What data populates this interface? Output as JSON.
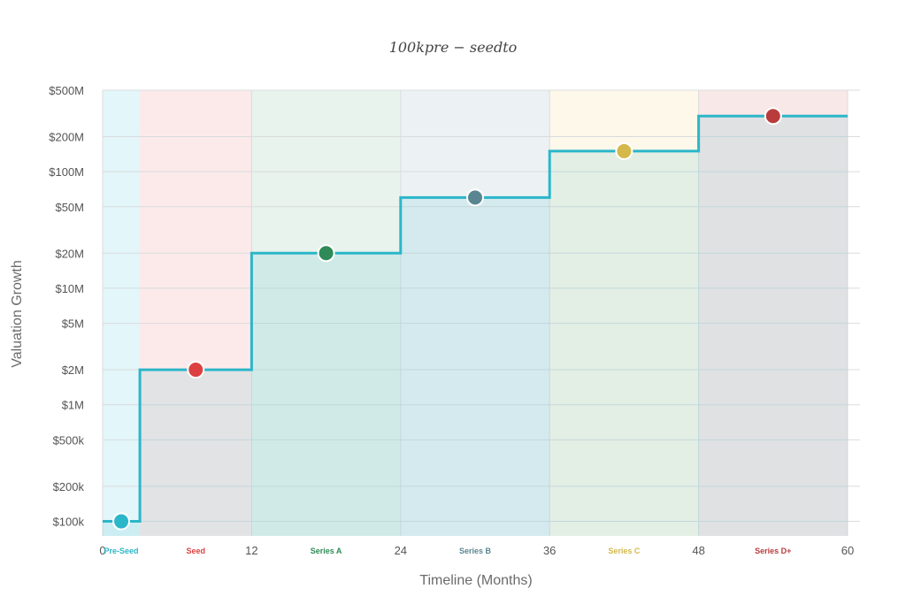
{
  "chart_data": {
    "type": "line",
    "title": "100kpre − seedto",
    "xlabel": "Timeline (Months)",
    "ylabel": "Valuation Growth",
    "y_scale": "log",
    "xlim": [
      0,
      60
    ],
    "ylim": [
      75000,
      500000000
    ],
    "grid": true,
    "x_ticks": [
      0,
      12,
      24,
      36,
      48,
      60
    ],
    "y_ticks": [
      {
        "value": 100000,
        "label": "$100k"
      },
      {
        "value": 200000,
        "label": "$200k"
      },
      {
        "value": 500000,
        "label": "$500k"
      },
      {
        "value": 1000000,
        "label": "$1M"
      },
      {
        "value": 2000000,
        "label": "$2M"
      },
      {
        "value": 5000000,
        "label": "$5M"
      },
      {
        "value": 10000000,
        "label": "$10M"
      },
      {
        "value": 20000000,
        "label": "$20M"
      },
      {
        "value": 50000000,
        "label": "$50M"
      },
      {
        "value": 100000000,
        "label": "$100M"
      },
      {
        "value": 200000000,
        "label": "$200M"
      },
      {
        "value": 500000000,
        "label": "$500M"
      }
    ],
    "stages": [
      {
        "label": "Pre-Seed",
        "x_start": 0,
        "x_end": 3,
        "valuation": 100000,
        "color": "#2bb6c9",
        "band_color": "#e3f6f9"
      },
      {
        "label": "Seed",
        "x_start": 3,
        "x_end": 12,
        "valuation": 2000000,
        "color": "#dc4040",
        "band_color": "#fceaea"
      },
      {
        "label": "Series A",
        "x_start": 12,
        "x_end": 24,
        "valuation": 20000000,
        "color": "#2e8b57",
        "band_color": "#e7f3ec"
      },
      {
        "label": "Series B",
        "x_start": 24,
        "x_end": 36,
        "valuation": 60000000,
        "color": "#5a8691",
        "band_color": "#ecf2f4"
      },
      {
        "label": "Series C",
        "x_start": 36,
        "x_end": 48,
        "valuation": 150000000,
        "color": "#d4b84a",
        "band_color": "#fdf8ea"
      },
      {
        "label": "Series D+",
        "x_start": 48,
        "x_end": 60,
        "valuation": 300000000,
        "color": "#b93b3b",
        "band_color": "#f9e8e8"
      }
    ],
    "markers": [
      {
        "x": 1.5,
        "y": 100000
      },
      {
        "x": 7.5,
        "y": 2000000
      },
      {
        "x": 18,
        "y": 20000000
      },
      {
        "x": 30,
        "y": 60000000
      },
      {
        "x": 42,
        "y": 150000000
      },
      {
        "x": 54,
        "y": 300000000
      }
    ],
    "line_color": "#2bb6c9",
    "fill_color": "#2bb6c9"
  }
}
